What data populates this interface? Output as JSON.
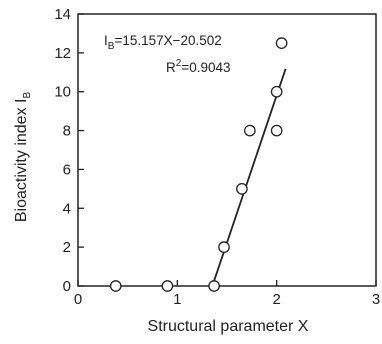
{
  "chart_data": {
    "type": "scatter",
    "xlabel": "Structural parameter X",
    "ylabel_text": "Bioactivity index I",
    "ylabel_sub": "B",
    "xlim": [
      0,
      3
    ],
    "ylim": [
      0,
      14
    ],
    "x_ticks": [
      0,
      1,
      2,
      3
    ],
    "y_ticks": [
      0,
      2,
      4,
      6,
      8,
      10,
      12,
      14
    ],
    "grid": false,
    "points": [
      {
        "x": 0.38,
        "y": 0.0
      },
      {
        "x": 0.9,
        "y": 0.0
      },
      {
        "x": 1.37,
        "y": 0.0
      },
      {
        "x": 1.47,
        "y": 2.0
      },
      {
        "x": 1.65,
        "y": 5.0
      },
      {
        "x": 1.73,
        "y": 8.0
      },
      {
        "x": 2.0,
        "y": 8.0
      },
      {
        "x": 2.0,
        "y": 10.0
      },
      {
        "x": 2.05,
        "y": 12.5
      }
    ],
    "fit_line": {
      "slope": 15.157,
      "intercept": -20.502,
      "x_range": [
        1.36,
        2.09
      ]
    },
    "equation": {
      "lhs": "I",
      "lhs_sub": "B",
      "rhs": "=15.157X−20.502"
    },
    "r_squared": {
      "label": "R",
      "sup": "2",
      "value": "=0.9043"
    }
  }
}
